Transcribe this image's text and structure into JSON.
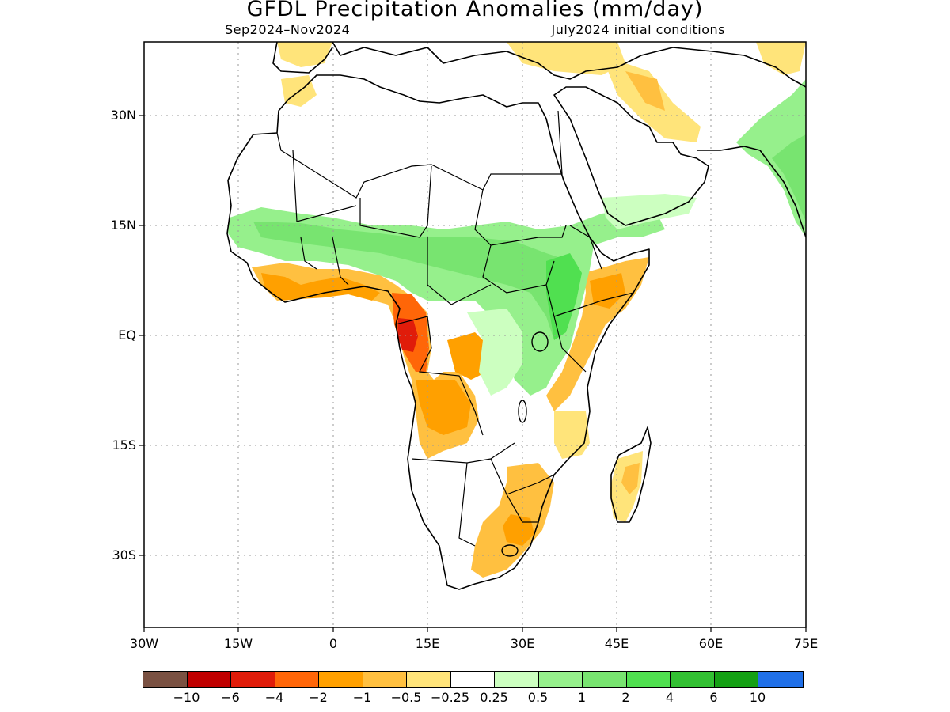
{
  "title": "GFDL Precipitation Anomalies (mm/day)",
  "period": "Sep2024–Nov2024",
  "initial_conditions": "July2024 initial conditions",
  "map": {
    "lon_range": [
      -30,
      75
    ],
    "lat_range": [
      -40,
      40
    ],
    "y_ticks": [
      "30N",
      "15N",
      "EQ",
      "15S",
      "30S"
    ],
    "x_ticks": [
      "30W",
      "15W",
      "0",
      "15E",
      "30E",
      "45E",
      "60E",
      "75E"
    ],
    "grid": "dotted"
  },
  "legend": {
    "colors": [
      "#7a5142",
      "#c00000",
      "#e01c0a",
      "#ff6608",
      "#ffa000",
      "#ffc040",
      "#ffe47a",
      "#ffffff",
      "#ccffc0",
      "#96f08c",
      "#78e470",
      "#50e050",
      "#32c032",
      "#14a014",
      "#2070e8"
    ],
    "labels": [
      "−10",
      "−6",
      "−4",
      "−2",
      "−1",
      "−0.5",
      "−0.25",
      "0.25",
      "0.5",
      "1",
      "2",
      "4",
      "6",
      "10"
    ]
  },
  "colors": {
    "dry_light": "#ffe47a",
    "dry_mid": "#ffc040",
    "dry_strong": "#ffa000",
    "dry_very": "#ff6608",
    "dry_extreme": "#e01c0a",
    "wet_light": "#ccffc0",
    "wet_mid": "#96f08c",
    "wet_strong": "#78e470",
    "wet_very": "#50e050"
  }
}
